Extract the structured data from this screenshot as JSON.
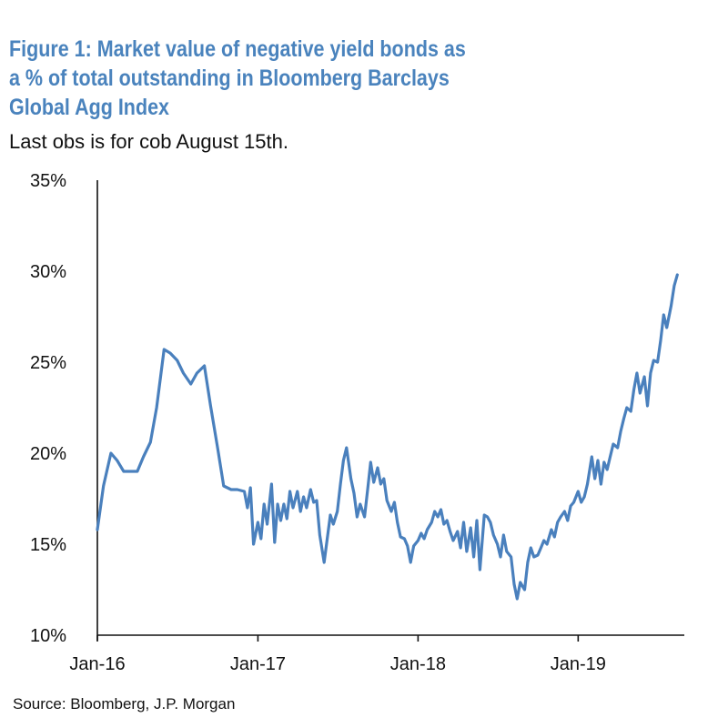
{
  "title_lines": [
    "Figure 1: Market value of negative yield bonds as",
    "a % of total outstanding in Bloomberg Barclays",
    "Global Agg Index"
  ],
  "subtitle": "Last obs is for cob August 15th.",
  "source": "Source: Bloomberg, J.P. Morgan",
  "colors": {
    "line": "#4a80bd",
    "title": "#4a83bd",
    "axis": "#111111"
  },
  "chart_data": {
    "type": "line",
    "title": "Figure 1: Market value of negative yield bonds as a % of total outstanding in Bloomberg Barclays Global Agg Index",
    "xlabel": "",
    "ylabel": "",
    "y_unit": "%",
    "ylim": [
      10,
      35
    ],
    "yticks": [
      10,
      15,
      20,
      25,
      30,
      35
    ],
    "ytick_labels": [
      "10%",
      "15%",
      "20%",
      "25%",
      "30%",
      "35%"
    ],
    "xlim": [
      "2016-01-01",
      "2019-08-31"
    ],
    "xticks": [
      "2016-01-01",
      "2017-01-01",
      "2018-01-01",
      "2019-01-01"
    ],
    "xtick_labels": [
      "Jan-16",
      "Jan-17",
      "Jan-18",
      "Jan-19"
    ],
    "grid": false,
    "legend": "none",
    "series": [
      {
        "name": "",
        "points": [
          [
            "2016-01-01",
            15.8
          ],
          [
            "2016-01-15",
            18.2
          ],
          [
            "2016-02-01",
            20.0
          ],
          [
            "2016-02-15",
            19.6
          ],
          [
            "2016-03-01",
            19.0
          ],
          [
            "2016-03-15",
            19.0
          ],
          [
            "2016-04-01",
            19.0
          ],
          [
            "2016-04-15",
            19.8
          ],
          [
            "2016-05-01",
            20.6
          ],
          [
            "2016-05-15",
            22.5
          ],
          [
            "2016-06-01",
            25.7
          ],
          [
            "2016-06-15",
            25.5
          ],
          [
            "2016-07-01",
            25.1
          ],
          [
            "2016-07-15",
            24.4
          ],
          [
            "2016-08-01",
            23.8
          ],
          [
            "2016-08-15",
            24.4
          ],
          [
            "2016-09-01",
            24.8
          ],
          [
            "2016-09-15",
            22.6
          ],
          [
            "2016-10-01",
            20.3
          ],
          [
            "2016-10-15",
            18.2
          ],
          [
            "2016-11-01",
            18.0
          ],
          [
            "2016-11-15",
            18.0
          ],
          [
            "2016-12-01",
            17.9
          ],
          [
            "2016-12-08",
            17.0
          ],
          [
            "2016-12-15",
            18.1
          ],
          [
            "2016-12-22",
            15.0
          ],
          [
            "2017-01-01",
            16.2
          ],
          [
            "2017-01-08",
            15.3
          ],
          [
            "2017-01-15",
            17.2
          ],
          [
            "2017-01-22",
            16.1
          ],
          [
            "2017-02-01",
            18.3
          ],
          [
            "2017-02-08",
            15.1
          ],
          [
            "2017-02-15",
            17.2
          ],
          [
            "2017-02-22",
            16.3
          ],
          [
            "2017-03-01",
            17.2
          ],
          [
            "2017-03-08",
            16.4
          ],
          [
            "2017-03-15",
            17.9
          ],
          [
            "2017-03-22",
            17.0
          ],
          [
            "2017-04-01",
            17.9
          ],
          [
            "2017-04-08",
            16.8
          ],
          [
            "2017-04-15",
            17.6
          ],
          [
            "2017-04-22",
            17.0
          ],
          [
            "2017-05-01",
            18.0
          ],
          [
            "2017-05-08",
            17.3
          ],
          [
            "2017-05-15",
            17.4
          ],
          [
            "2017-05-22",
            15.5
          ],
          [
            "2017-06-01",
            14.0
          ],
          [
            "2017-06-08",
            15.3
          ],
          [
            "2017-06-15",
            16.6
          ],
          [
            "2017-06-22",
            16.1
          ],
          [
            "2017-07-01",
            16.8
          ],
          [
            "2017-07-08",
            18.3
          ],
          [
            "2017-07-15",
            19.6
          ],
          [
            "2017-07-22",
            20.3
          ],
          [
            "2017-08-01",
            18.6
          ],
          [
            "2017-08-08",
            17.8
          ],
          [
            "2017-08-15",
            16.5
          ],
          [
            "2017-08-22",
            17.2
          ],
          [
            "2017-09-01",
            16.5
          ],
          [
            "2017-09-08",
            18.0
          ],
          [
            "2017-09-15",
            19.5
          ],
          [
            "2017-09-22",
            18.4
          ],
          [
            "2017-10-01",
            19.2
          ],
          [
            "2017-10-08",
            18.3
          ],
          [
            "2017-10-15",
            18.6
          ],
          [
            "2017-10-22",
            17.4
          ],
          [
            "2017-11-01",
            16.8
          ],
          [
            "2017-11-08",
            17.3
          ],
          [
            "2017-11-15",
            16.2
          ],
          [
            "2017-11-22",
            15.4
          ],
          [
            "2017-12-01",
            15.3
          ],
          [
            "2017-12-08",
            14.9
          ],
          [
            "2017-12-15",
            14.0
          ],
          [
            "2017-12-22",
            14.9
          ],
          [
            "2018-01-01",
            15.2
          ],
          [
            "2018-01-08",
            15.6
          ],
          [
            "2018-01-15",
            15.3
          ],
          [
            "2018-01-22",
            15.8
          ],
          [
            "2018-02-01",
            16.2
          ],
          [
            "2018-02-08",
            16.8
          ],
          [
            "2018-02-15",
            16.5
          ],
          [
            "2018-02-22",
            16.9
          ],
          [
            "2018-03-01",
            16.1
          ],
          [
            "2018-03-08",
            16.3
          ],
          [
            "2018-03-15",
            15.7
          ],
          [
            "2018-03-22",
            15.2
          ],
          [
            "2018-04-01",
            15.7
          ],
          [
            "2018-04-08",
            14.8
          ],
          [
            "2018-04-15",
            16.2
          ],
          [
            "2018-04-22",
            14.6
          ],
          [
            "2018-05-01",
            15.9
          ],
          [
            "2018-05-08",
            14.3
          ],
          [
            "2018-05-15",
            16.3
          ],
          [
            "2018-05-22",
            13.6
          ],
          [
            "2018-06-01",
            16.6
          ],
          [
            "2018-06-08",
            16.5
          ],
          [
            "2018-06-15",
            16.2
          ],
          [
            "2018-06-22",
            15.5
          ],
          [
            "2018-07-01",
            15.0
          ],
          [
            "2018-07-08",
            14.3
          ],
          [
            "2018-07-15",
            15.5
          ],
          [
            "2018-07-22",
            14.6
          ],
          [
            "2018-08-01",
            14.3
          ],
          [
            "2018-08-08",
            12.8
          ],
          [
            "2018-08-15",
            12.0
          ],
          [
            "2018-08-22",
            12.9
          ],
          [
            "2018-09-01",
            12.5
          ],
          [
            "2018-09-08",
            14.0
          ],
          [
            "2018-09-15",
            14.8
          ],
          [
            "2018-09-22",
            14.3
          ],
          [
            "2018-10-01",
            14.4
          ],
          [
            "2018-10-08",
            14.8
          ],
          [
            "2018-10-15",
            15.2
          ],
          [
            "2018-10-22",
            15.0
          ],
          [
            "2018-11-01",
            15.8
          ],
          [
            "2018-11-08",
            15.4
          ],
          [
            "2018-11-15",
            16.2
          ],
          [
            "2018-11-22",
            16.5
          ],
          [
            "2018-12-01",
            16.8
          ],
          [
            "2018-12-08",
            16.3
          ],
          [
            "2018-12-15",
            17.1
          ],
          [
            "2018-12-22",
            17.3
          ],
          [
            "2019-01-01",
            17.9
          ],
          [
            "2019-01-08",
            17.3
          ],
          [
            "2019-01-15",
            17.6
          ],
          [
            "2019-01-22",
            18.3
          ],
          [
            "2019-02-01",
            19.8
          ],
          [
            "2019-02-08",
            18.6
          ],
          [
            "2019-02-15",
            19.6
          ],
          [
            "2019-02-22",
            18.3
          ],
          [
            "2019-03-01",
            19.5
          ],
          [
            "2019-03-08",
            19.1
          ],
          [
            "2019-03-15",
            19.8
          ],
          [
            "2019-03-22",
            20.5
          ],
          [
            "2019-04-01",
            20.3
          ],
          [
            "2019-04-08",
            21.2
          ],
          [
            "2019-04-15",
            21.9
          ],
          [
            "2019-04-22",
            22.5
          ],
          [
            "2019-05-01",
            22.3
          ],
          [
            "2019-05-08",
            23.5
          ],
          [
            "2019-05-15",
            24.4
          ],
          [
            "2019-05-22",
            23.3
          ],
          [
            "2019-06-01",
            24.2
          ],
          [
            "2019-06-08",
            22.6
          ],
          [
            "2019-06-15",
            24.4
          ],
          [
            "2019-06-22",
            25.1
          ],
          [
            "2019-07-01",
            25.0
          ],
          [
            "2019-07-08",
            26.2
          ],
          [
            "2019-07-15",
            27.6
          ],
          [
            "2019-07-22",
            26.9
          ],
          [
            "2019-08-01",
            28.1
          ],
          [
            "2019-08-08",
            29.2
          ],
          [
            "2019-08-15",
            29.8
          ]
        ]
      }
    ]
  }
}
